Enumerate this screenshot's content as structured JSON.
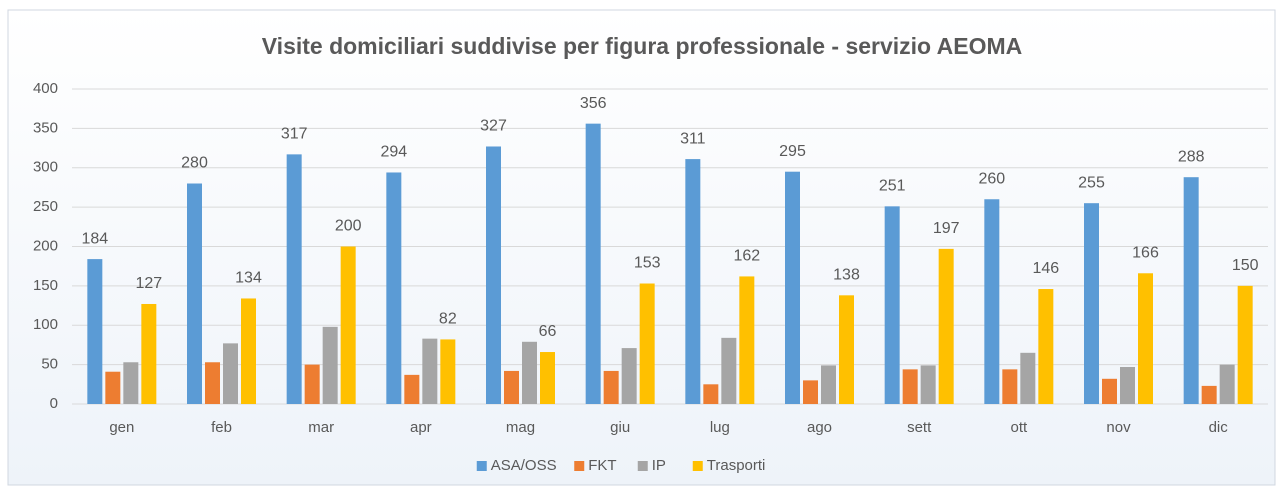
{
  "chart_data": {
    "type": "bar",
    "title": "Visite domiciliari suddivise per figura professionale - servizio AEOMA",
    "categories": [
      "gen",
      "feb",
      "mar",
      "apr",
      "mag",
      "giu",
      "lug",
      "ago",
      "sett",
      "ott",
      "nov",
      "dic"
    ],
    "series": [
      {
        "name": "ASA/OSS",
        "color": "#5b9bd5",
        "data_labels": true,
        "values": [
          184,
          280,
          317,
          294,
          327,
          356,
          311,
          295,
          251,
          260,
          255,
          288
        ]
      },
      {
        "name": "FKT",
        "color": "#ed7d31",
        "data_labels": false,
        "values": [
          41,
          53,
          50,
          37,
          42,
          42,
          25,
          30,
          44,
          44,
          32,
          23
        ]
      },
      {
        "name": "IP",
        "color": "#a5a5a5",
        "data_labels": false,
        "values": [
          53,
          77,
          98,
          83,
          79,
          71,
          84,
          49,
          49,
          65,
          47,
          50
        ]
      },
      {
        "name": "Trasporti",
        "color": "#ffc000",
        "data_labels": true,
        "values": [
          127,
          134,
          200,
          82,
          66,
          153,
          162,
          138,
          197,
          146,
          166,
          150
        ]
      }
    ],
    "ylim": [
      0,
      400
    ],
    "yticks": [
      0,
      50,
      100,
      150,
      200,
      250,
      300,
      350,
      400
    ],
    "grid": true,
    "legend": "bottom"
  }
}
